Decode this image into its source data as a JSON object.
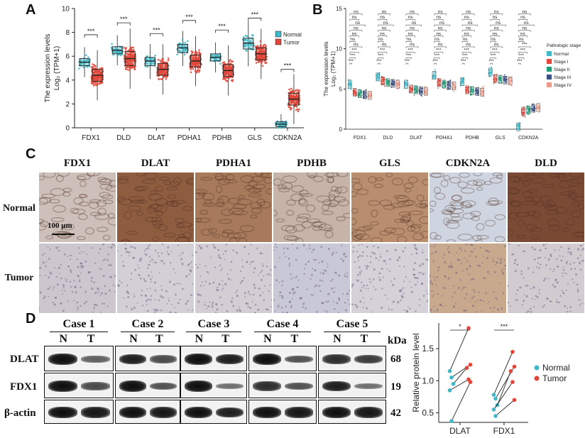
{
  "panels": {
    "A": "A",
    "B": "B",
    "C": "C",
    "D": "D"
  },
  "chart_data": [
    {
      "type": "boxplot",
      "panel": "A",
      "ylabel_line1": "The expression levels",
      "ylabel_line2": "Log₂ (TPM+1)",
      "categories": [
        "FDX1",
        "DLD",
        "DLAT",
        "PDHA1",
        "PDHB",
        "GLS",
        "CDKN2A"
      ],
      "ylim": [
        0,
        10
      ],
      "yticks": [
        0,
        2,
        4,
        6,
        8,
        10
      ],
      "legend": {
        "position": "top-right",
        "entries": [
          "Normal",
          "Tumor"
        ]
      },
      "colors": {
        "Normal": "#3fb8c7",
        "Tumor": "#e0473a"
      },
      "significance": [
        "***",
        "***",
        "***",
        "***",
        "***",
        "***",
        "***"
      ],
      "series": [
        {
          "name": "Normal",
          "median": [
            5.5,
            6.5,
            5.6,
            6.7,
            5.9,
            7.1,
            0.3
          ],
          "q1": [
            5.2,
            6.2,
            5.2,
            6.3,
            5.6,
            6.6,
            0.1
          ],
          "q3": [
            5.8,
            6.8,
            5.9,
            7.0,
            6.2,
            7.5,
            0.5
          ]
        },
        {
          "name": "Tumor",
          "median": [
            4.4,
            5.8,
            4.9,
            5.6,
            4.8,
            6.2,
            2.4
          ],
          "q1": [
            3.9,
            5.2,
            4.4,
            5.1,
            4.3,
            5.7,
            1.9
          ],
          "q3": [
            4.9,
            6.4,
            5.4,
            6.1,
            5.3,
            6.7,
            2.9
          ]
        }
      ]
    },
    {
      "type": "boxplot",
      "panel": "B",
      "ylabel_line1": "The expression levels",
      "ylabel_line2": "Log₂ (TPM+1)",
      "categories": [
        "FDX1",
        "DLD",
        "DLAT",
        "PDHA1",
        "PDHB",
        "GLS",
        "CDKN2A"
      ],
      "ylim": [
        0,
        15
      ],
      "yticks": [
        0,
        5,
        10,
        15
      ],
      "legend": {
        "title": "Pathologic stage",
        "position": "right",
        "entries": [
          "Normal",
          "Stage I",
          "Stage II",
          "Stage III",
          "Stage IV"
        ]
      },
      "colors": {
        "Normal": "#3fb8c7",
        "Stage I": "#e0473a",
        "Stage II": "#1f9e77",
        "Stage III": "#3b4f86",
        "Stage IV": "#e99a8a"
      },
      "significance_labels": [
        "***",
        "***",
        "***",
        "ns",
        "ns",
        "ns",
        "ns",
        "ns",
        "ns",
        "ns"
      ],
      "cdkn2a_significance_labels": [
        "***",
        "***",
        "***",
        "***",
        "ns",
        "ns",
        "ns",
        "ns",
        "ns",
        "ns"
      ],
      "series": [
        {
          "name": "Normal",
          "median": [
            5.6,
            6.5,
            5.6,
            6.7,
            5.9,
            7.1,
            0.3
          ]
        },
        {
          "name": "Stage I",
          "median": [
            4.6,
            6.0,
            5.0,
            5.8,
            4.9,
            6.3,
            2.2
          ]
        },
        {
          "name": "Stage II",
          "median": [
            4.4,
            5.8,
            4.9,
            5.6,
            4.8,
            6.2,
            2.4
          ]
        },
        {
          "name": "Stage III",
          "median": [
            4.3,
            5.7,
            4.8,
            5.5,
            4.7,
            6.1,
            2.6
          ]
        },
        {
          "name": "Stage IV",
          "median": [
            4.2,
            5.6,
            4.7,
            5.4,
            4.6,
            6.0,
            2.7
          ]
        }
      ]
    },
    {
      "type": "scatter",
      "panel": "D-right",
      "ylabel": "Relative protein level",
      "categories": [
        "DLAT",
        "FDX1"
      ],
      "ylim": [
        0.35,
        1.9
      ],
      "yticks": [
        0.5,
        1.0,
        1.5
      ],
      "ytick_labels": [
        "0.5",
        "1.0",
        "1.5"
      ],
      "significance": [
        "*",
        "***"
      ],
      "legend": {
        "position": "right",
        "entries": [
          "Normal",
          "Tumor"
        ]
      },
      "colors": {
        "Normal": "#3fb8c7",
        "Tumor": "#e0473a"
      },
      "pairs": [
        {
          "category": "DLAT",
          "normal": [
            1.15,
            1.05,
            0.95,
            0.85,
            0.37
          ],
          "tumor": [
            1.82,
            1.25,
            1.2,
            1.02,
            0.98
          ]
        },
        {
          "category": "FDX1",
          "normal": [
            0.78,
            0.72,
            0.62,
            0.55,
            0.45
          ],
          "tumor": [
            1.45,
            1.22,
            1.15,
            0.98,
            0.7
          ]
        }
      ]
    }
  ],
  "ihc": {
    "columns": [
      "FDX1",
      "DLAT",
      "PDHA1",
      "PDHB",
      "GLS",
      "CDKN2A",
      "DLD"
    ],
    "rows": [
      "Normal",
      "Tumor"
    ],
    "scale_bar": "100 μm",
    "normal_colors": [
      "#cdbfb9",
      "#8e5c3f",
      "#a67a5a",
      "#c6b4a9",
      "#b88e6e",
      "#cfd5e0",
      "#7a4a35"
    ],
    "tumor_colors": [
      "#cec6cf",
      "#d3cfd6",
      "#d4cdd3",
      "#c9c8d6",
      "#d5d1d9",
      "#c8a98e",
      "#d2cbd0"
    ]
  },
  "western": {
    "cases": [
      "Case 1",
      "Case 2",
      "Case 3",
      "Case 4",
      "Case 5"
    ],
    "lane_labels": [
      "N",
      "T"
    ],
    "proteins": [
      "DLAT",
      "FDX1",
      "β-actin"
    ],
    "kda_header": "kDa",
    "kda": [
      "68",
      "19",
      "42"
    ]
  }
}
